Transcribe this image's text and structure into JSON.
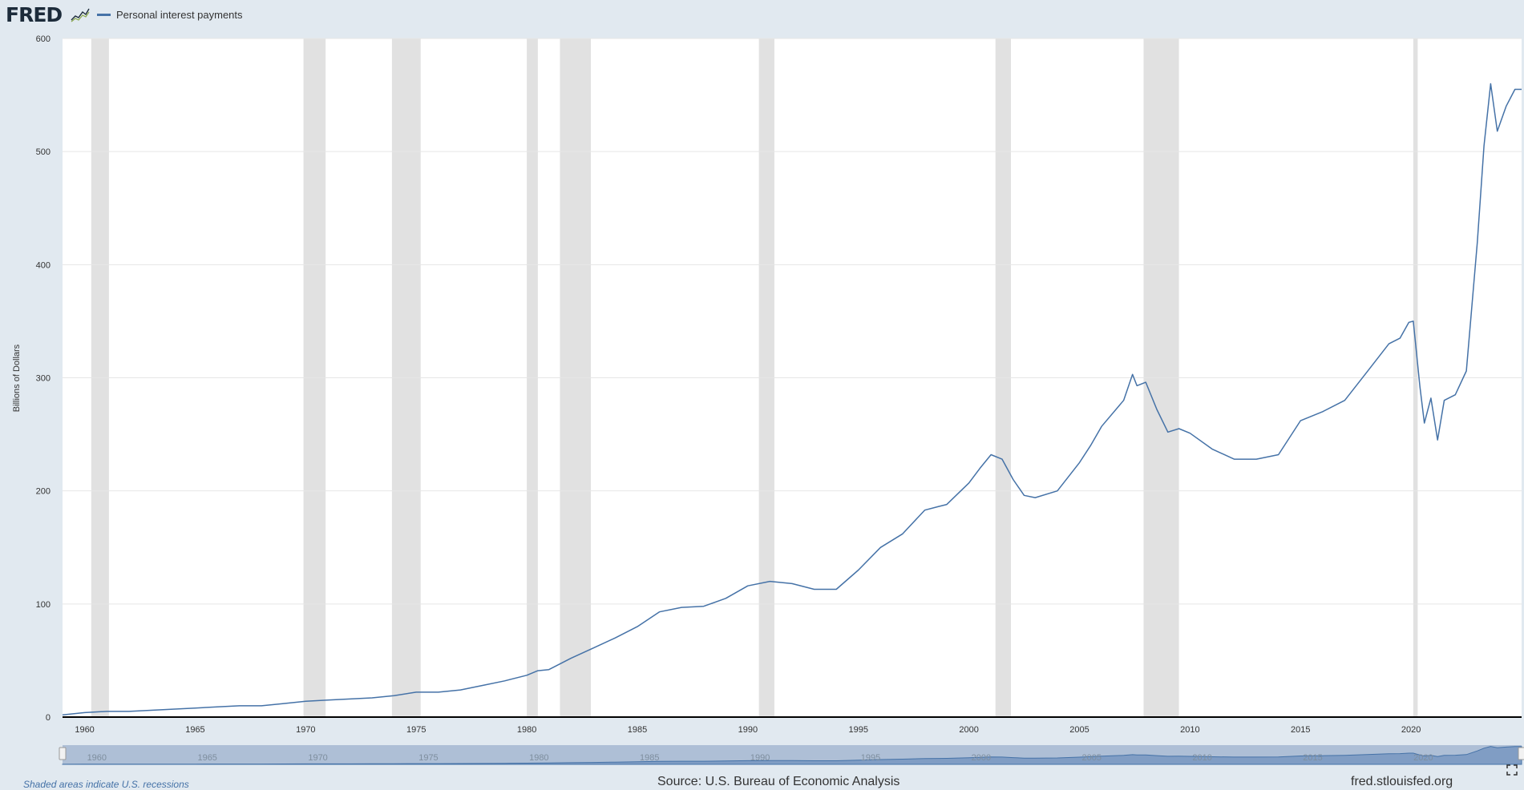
{
  "header": {
    "logo_text": "FRED",
    "logo_icon": "line-graph-icon",
    "legend_label": "Personal interest payments"
  },
  "footer": {
    "note": "Shaded areas indicate U.S. recessions",
    "source": "Source: U.S. Bureau of Economic Analysis",
    "site": "fred.stlouisfed.org",
    "fullscreen_icon": "fullscreen-icon"
  },
  "colors": {
    "background": "#e1e9f0",
    "plot_background": "#ffffff",
    "series_line": "#4572a7",
    "recession_band": "#e1e1e1",
    "navigator_fill": "#aebfd6"
  },
  "chart_data": {
    "type": "line",
    "title": "",
    "xlabel": "",
    "ylabel": "Billions of Dollars",
    "xlim": [
      1959,
      2025
    ],
    "ylim": [
      0,
      600
    ],
    "yticks": [
      0,
      100,
      200,
      300,
      400,
      500,
      600
    ],
    "xticks": [
      1960,
      1965,
      1970,
      1975,
      1980,
      1985,
      1990,
      1995,
      2000,
      2005,
      2010,
      2015,
      2020
    ],
    "grid": true,
    "legend_position": "top-left",
    "recessions": [
      [
        1960.3,
        1961.1
      ],
      [
        1969.9,
        1970.9
      ],
      [
        1973.9,
        1975.2
      ],
      [
        1980.0,
        1980.5
      ],
      [
        1981.5,
        1982.9
      ],
      [
        1990.5,
        1991.2
      ],
      [
        2001.2,
        2001.9
      ],
      [
        2007.9,
        2009.5
      ],
      [
        2020.1,
        2020.3
      ]
    ],
    "series": [
      {
        "name": "Personal interest payments",
        "x": [
          1959,
          1960,
          1961,
          1962,
          1963,
          1964,
          1965,
          1966,
          1967,
          1968,
          1969,
          1970,
          1971,
          1972,
          1973,
          1974,
          1975,
          1976,
          1977,
          1978,
          1979,
          1980,
          1980.5,
          1981,
          1982,
          1983,
          1984,
          1985,
          1986,
          1987,
          1988,
          1989,
          1990,
          1991,
          1992,
          1993,
          1994,
          1995,
          1996,
          1997,
          1998,
          1998.6,
          1999,
          2000,
          2000.5,
          2001,
          2001.5,
          2002,
          2002.5,
          2003,
          2004,
          2005,
          2005.5,
          2006,
          2007,
          2007.4,
          2007.6,
          2008,
          2008.5,
          2009,
          2009.5,
          2010,
          2011,
          2012,
          2013,
          2014,
          2015,
          2016,
          2017,
          2018,
          2019,
          2019.5,
          2019.9,
          2020.1,
          2020.4,
          2020.6,
          2020.9,
          2021.2,
          2021.5,
          2022,
          2022.5,
          2023,
          2023.3,
          2023.6,
          2023.9,
          2024.3,
          2024.7,
          2025
        ],
        "values": [
          2,
          4,
          5,
          5,
          6,
          7,
          8,
          9,
          10,
          10,
          12,
          14,
          15,
          16,
          17,
          19,
          22,
          22,
          24,
          28,
          32,
          37,
          41,
          42,
          52,
          61,
          70,
          80,
          93,
          97,
          98,
          105,
          116,
          120,
          118,
          113,
          113,
          130,
          150,
          162,
          183,
          186,
          188,
          207,
          220,
          232,
          228,
          210,
          196,
          194,
          200,
          225,
          240,
          257,
          280,
          303,
          293,
          296,
          272,
          252,
          255,
          251,
          237,
          228,
          228,
          232,
          262,
          270,
          280,
          305,
          330,
          335,
          349,
          350,
          292,
          260,
          282,
          245,
          280,
          285,
          306,
          420,
          505,
          560,
          518,
          540,
          555,
          555
        ]
      }
    ]
  }
}
